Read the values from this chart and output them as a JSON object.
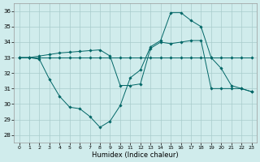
{
  "xlabel": "Humidex (Indice chaleur)",
  "background_color": "#d0ecec",
  "grid_color": "#a8cccc",
  "line_color": "#006666",
  "xlim": [
    -0.5,
    23.5
  ],
  "ylim": [
    27.5,
    36.5
  ],
  "yticks": [
    28,
    29,
    30,
    31,
    32,
    33,
    34,
    35,
    36
  ],
  "xticks": [
    0,
    1,
    2,
    3,
    4,
    5,
    6,
    7,
    8,
    9,
    10,
    11,
    12,
    13,
    14,
    15,
    16,
    17,
    18,
    19,
    20,
    21,
    22,
    23
  ],
  "series": [
    {
      "x": [
        0,
        1,
        2,
        3,
        4,
        5,
        6,
        7,
        8,
        9,
        10,
        11,
        12,
        13,
        14,
        15,
        16,
        17,
        18,
        19,
        20,
        21,
        22,
        23
      ],
      "y": [
        33.0,
        33.0,
        32.9,
        31.6,
        30.5,
        29.8,
        29.7,
        29.2,
        28.5,
        28.9,
        29.9,
        31.7,
        32.2,
        33.7,
        34.1,
        35.9,
        35.9,
        35.4,
        35.0,
        33.0,
        32.3,
        31.2,
        31.0,
        30.8
      ]
    },
    {
      "x": [
        0,
        1,
        2,
        3,
        4,
        5,
        6,
        7,
        8,
        9,
        10,
        11,
        12,
        13,
        14,
        15,
        16,
        17,
        18,
        19,
        20,
        21,
        22,
        23
      ],
      "y": [
        33.0,
        33.0,
        33.1,
        33.2,
        33.3,
        33.35,
        33.4,
        33.45,
        33.5,
        33.1,
        31.2,
        31.2,
        31.3,
        33.6,
        34.0,
        33.9,
        34.0,
        34.1,
        34.1,
        31.0,
        31.0,
        31.0,
        31.0,
        30.8
      ]
    },
    {
      "x": [
        0,
        1,
        2,
        3,
        4,
        5,
        6,
        7,
        8,
        9,
        10,
        11,
        12,
        13,
        14,
        15,
        16,
        17,
        18,
        19,
        20,
        21,
        22,
        23
      ],
      "y": [
        33.0,
        33.0,
        33.0,
        33.0,
        33.0,
        33.0,
        33.0,
        33.0,
        33.0,
        33.0,
        33.0,
        33.0,
        33.0,
        33.0,
        33.0,
        33.0,
        33.0,
        33.0,
        33.0,
        33.0,
        33.0,
        33.0,
        33.0,
        33.0
      ]
    }
  ]
}
